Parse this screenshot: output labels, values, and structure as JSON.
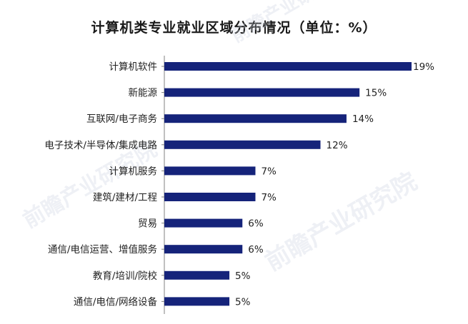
{
  "chart_data": {
    "type": "bar",
    "orientation": "horizontal",
    "title": "计算机类专业就业区域分布情况（单位：%）",
    "categories": [
      "计算机软件",
      "新能源",
      "互联网/电子商务",
      "电子技术/半导体/集成电路",
      "计算机服务",
      "建筑/建材/工程",
      "贸易",
      "通信/电信运营、增值服务",
      "教育/培训/院校",
      "通信/电信/网络设备"
    ],
    "values": [
      19,
      15,
      14,
      12,
      7,
      7,
      6,
      6,
      5,
      5
    ],
    "value_labels": [
      "19%",
      "15%",
      "14%",
      "12%",
      "7%",
      "7%",
      "6%",
      "6%",
      "5%",
      "5%"
    ],
    "xlim": [
      0,
      19
    ],
    "grid": false,
    "bar_color": "#15237a",
    "axis_color": "#808080"
  },
  "watermark": {
    "text": "前瞻产业研究院"
  }
}
